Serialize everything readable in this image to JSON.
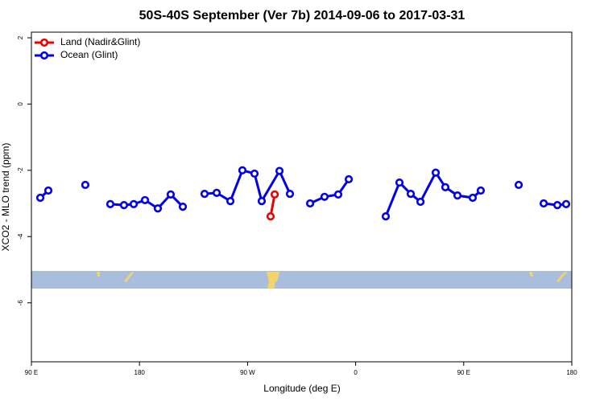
{
  "chart_data": {
    "type": "line",
    "title": "50S-40S September (Ver 7b)   2014-09-06 to 2017-03-31",
    "x_label": "Longitude (deg E)",
    "y_label": "XCO2 - MLO trend (ppm)",
    "xlim": [
      90,
      540
    ],
    "xticks": [
      {
        "value": 90,
        "label": "90 E"
      },
      {
        "value": 180,
        "label": "180"
      },
      {
        "value": 270,
        "label": "90 W"
      },
      {
        "value": 360,
        "label": "0"
      },
      {
        "value": 450,
        "label": "90 E"
      },
      {
        "value": 540,
        "label": "180"
      }
    ],
    "ylim": [
      -7.78,
      2.17
    ],
    "yticks": [
      2,
      0,
      -2,
      -4,
      -6
    ],
    "legend": "top-left",
    "series": [
      {
        "name": "Land (Nadir&Glint)",
        "color": "#ee0000",
        "x": [
          289.2,
          292.6
        ],
        "values": [
          -3.39,
          -2.73
        ]
      },
      {
        "name": "Ocean (Glint)",
        "color": "#0000ee",
        "x": [
          97.4,
          104.1,
          null,
          134.9,
          null,
          155.7,
          167.1,
          175.2,
          184.6,
          195.3,
          206.0,
          216.1,
          null,
          234.2,
          244.3,
          255.7,
          265.7,
          275.8,
          281.8,
          296.6,
          305.3,
          null,
          322.1,
          334.1,
          345.5,
          354.3,
          null,
          385.1,
          396.5,
          405.9,
          414.0,
          426.7,
          434.7,
          444.8,
          457.5,
          464.2,
          null,
          495.8,
          null,
          516.6,
          528.0,
          535.3
        ],
        "values": [
          -2.83,
          -2.61,
          null,
          -2.44,
          null,
          -3.02,
          -3.05,
          -3.02,
          -2.9,
          -3.15,
          -2.73,
          -3.1,
          null,
          -2.71,
          -2.68,
          -2.93,
          -2.0,
          -2.1,
          -2.93,
          -2.02,
          -2.71,
          null,
          -3.0,
          -2.8,
          -2.73,
          -2.27,
          null,
          -3.39,
          -2.37,
          -2.71,
          -2.95,
          -2.07,
          -2.51,
          -2.76,
          -2.83,
          -2.61,
          null,
          -2.44,
          null,
          -3.0,
          -3.05,
          -3.02
        ]
      }
    ]
  }
}
